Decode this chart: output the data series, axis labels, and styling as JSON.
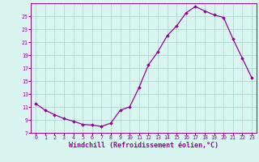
{
  "x": [
    0,
    1,
    2,
    3,
    4,
    5,
    6,
    7,
    8,
    9,
    10,
    11,
    12,
    13,
    14,
    15,
    16,
    17,
    18,
    19,
    20,
    21,
    22,
    23
  ],
  "y": [
    11.5,
    10.5,
    9.8,
    9.2,
    8.8,
    8.3,
    8.2,
    8.0,
    8.5,
    10.5,
    11.0,
    14.0,
    17.5,
    19.5,
    22.0,
    23.5,
    25.5,
    26.5,
    25.8,
    25.2,
    24.8,
    21.5,
    18.5,
    15.5
  ],
  "line_color": "#990099",
  "marker": "D",
  "marker_size": 1.8,
  "bg_color": "#d8f5f0",
  "grid_color": "#b0d8d0",
  "xlabel": "Windchill (Refroidissement éolien,°C)",
  "xlabel_color": "#990099",
  "xlim": [
    -0.5,
    23.5
  ],
  "ylim": [
    7,
    27
  ],
  "yticks": [
    7,
    9,
    11,
    13,
    15,
    17,
    19,
    21,
    23,
    25
  ],
  "xticks": [
    0,
    1,
    2,
    3,
    4,
    5,
    6,
    7,
    8,
    9,
    10,
    11,
    12,
    13,
    14,
    15,
    16,
    17,
    18,
    19,
    20,
    21,
    22,
    23
  ],
  "tick_color": "#990099",
  "tick_fontsize": 4.8,
  "xlabel_fontsize": 6.0
}
